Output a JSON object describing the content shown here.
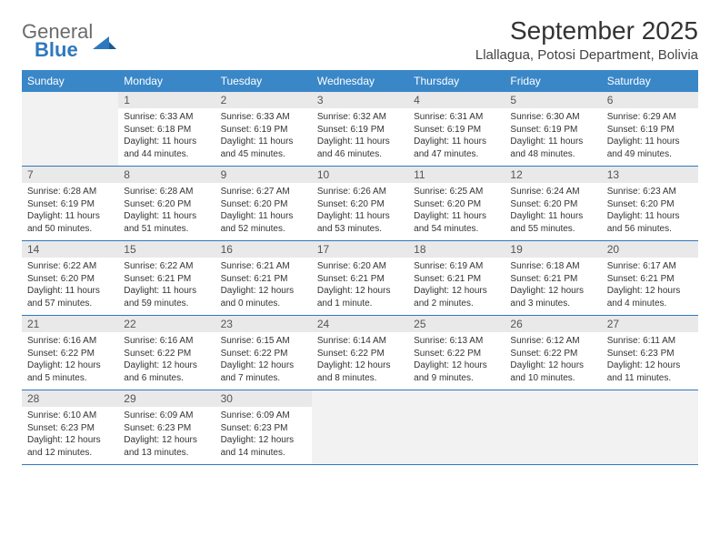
{
  "logo": {
    "word1": "General",
    "word2": "Blue",
    "word1_color": "#6b6b6b",
    "word2_color": "#2f78bf"
  },
  "title": "September 2025",
  "location": "Llallagua, Potosi Department, Bolivia",
  "header_bg": "#3a87c8",
  "header_fg": "#ffffff",
  "divider_color": "#2f78bf",
  "daynum_bg": "#e9e9e9",
  "empty_bg": "#f2f2f2",
  "day_names": [
    "Sunday",
    "Monday",
    "Tuesday",
    "Wednesday",
    "Thursday",
    "Friday",
    "Saturday"
  ],
  "weeks": [
    [
      null,
      {
        "n": "1",
        "sr": "Sunrise: 6:33 AM",
        "ss": "Sunset: 6:18 PM",
        "dl": "Daylight: 11 hours and 44 minutes."
      },
      {
        "n": "2",
        "sr": "Sunrise: 6:33 AM",
        "ss": "Sunset: 6:19 PM",
        "dl": "Daylight: 11 hours and 45 minutes."
      },
      {
        "n": "3",
        "sr": "Sunrise: 6:32 AM",
        "ss": "Sunset: 6:19 PM",
        "dl": "Daylight: 11 hours and 46 minutes."
      },
      {
        "n": "4",
        "sr": "Sunrise: 6:31 AM",
        "ss": "Sunset: 6:19 PM",
        "dl": "Daylight: 11 hours and 47 minutes."
      },
      {
        "n": "5",
        "sr": "Sunrise: 6:30 AM",
        "ss": "Sunset: 6:19 PM",
        "dl": "Daylight: 11 hours and 48 minutes."
      },
      {
        "n": "6",
        "sr": "Sunrise: 6:29 AM",
        "ss": "Sunset: 6:19 PM",
        "dl": "Daylight: 11 hours and 49 minutes."
      }
    ],
    [
      {
        "n": "7",
        "sr": "Sunrise: 6:28 AM",
        "ss": "Sunset: 6:19 PM",
        "dl": "Daylight: 11 hours and 50 minutes."
      },
      {
        "n": "8",
        "sr": "Sunrise: 6:28 AM",
        "ss": "Sunset: 6:20 PM",
        "dl": "Daylight: 11 hours and 51 minutes."
      },
      {
        "n": "9",
        "sr": "Sunrise: 6:27 AM",
        "ss": "Sunset: 6:20 PM",
        "dl": "Daylight: 11 hours and 52 minutes."
      },
      {
        "n": "10",
        "sr": "Sunrise: 6:26 AM",
        "ss": "Sunset: 6:20 PM",
        "dl": "Daylight: 11 hours and 53 minutes."
      },
      {
        "n": "11",
        "sr": "Sunrise: 6:25 AM",
        "ss": "Sunset: 6:20 PM",
        "dl": "Daylight: 11 hours and 54 minutes."
      },
      {
        "n": "12",
        "sr": "Sunrise: 6:24 AM",
        "ss": "Sunset: 6:20 PM",
        "dl": "Daylight: 11 hours and 55 minutes."
      },
      {
        "n": "13",
        "sr": "Sunrise: 6:23 AM",
        "ss": "Sunset: 6:20 PM",
        "dl": "Daylight: 11 hours and 56 minutes."
      }
    ],
    [
      {
        "n": "14",
        "sr": "Sunrise: 6:22 AM",
        "ss": "Sunset: 6:20 PM",
        "dl": "Daylight: 11 hours and 57 minutes."
      },
      {
        "n": "15",
        "sr": "Sunrise: 6:22 AM",
        "ss": "Sunset: 6:21 PM",
        "dl": "Daylight: 11 hours and 59 minutes."
      },
      {
        "n": "16",
        "sr": "Sunrise: 6:21 AM",
        "ss": "Sunset: 6:21 PM",
        "dl": "Daylight: 12 hours and 0 minutes."
      },
      {
        "n": "17",
        "sr": "Sunrise: 6:20 AM",
        "ss": "Sunset: 6:21 PM",
        "dl": "Daylight: 12 hours and 1 minute."
      },
      {
        "n": "18",
        "sr": "Sunrise: 6:19 AM",
        "ss": "Sunset: 6:21 PM",
        "dl": "Daylight: 12 hours and 2 minutes."
      },
      {
        "n": "19",
        "sr": "Sunrise: 6:18 AM",
        "ss": "Sunset: 6:21 PM",
        "dl": "Daylight: 12 hours and 3 minutes."
      },
      {
        "n": "20",
        "sr": "Sunrise: 6:17 AM",
        "ss": "Sunset: 6:21 PM",
        "dl": "Daylight: 12 hours and 4 minutes."
      }
    ],
    [
      {
        "n": "21",
        "sr": "Sunrise: 6:16 AM",
        "ss": "Sunset: 6:22 PM",
        "dl": "Daylight: 12 hours and 5 minutes."
      },
      {
        "n": "22",
        "sr": "Sunrise: 6:16 AM",
        "ss": "Sunset: 6:22 PM",
        "dl": "Daylight: 12 hours and 6 minutes."
      },
      {
        "n": "23",
        "sr": "Sunrise: 6:15 AM",
        "ss": "Sunset: 6:22 PM",
        "dl": "Daylight: 12 hours and 7 minutes."
      },
      {
        "n": "24",
        "sr": "Sunrise: 6:14 AM",
        "ss": "Sunset: 6:22 PM",
        "dl": "Daylight: 12 hours and 8 minutes."
      },
      {
        "n": "25",
        "sr": "Sunrise: 6:13 AM",
        "ss": "Sunset: 6:22 PM",
        "dl": "Daylight: 12 hours and 9 minutes."
      },
      {
        "n": "26",
        "sr": "Sunrise: 6:12 AM",
        "ss": "Sunset: 6:22 PM",
        "dl": "Daylight: 12 hours and 10 minutes."
      },
      {
        "n": "27",
        "sr": "Sunrise: 6:11 AM",
        "ss": "Sunset: 6:23 PM",
        "dl": "Daylight: 12 hours and 11 minutes."
      }
    ],
    [
      {
        "n": "28",
        "sr": "Sunrise: 6:10 AM",
        "ss": "Sunset: 6:23 PM",
        "dl": "Daylight: 12 hours and 12 minutes."
      },
      {
        "n": "29",
        "sr": "Sunrise: 6:09 AM",
        "ss": "Sunset: 6:23 PM",
        "dl": "Daylight: 12 hours and 13 minutes."
      },
      {
        "n": "30",
        "sr": "Sunrise: 6:09 AM",
        "ss": "Sunset: 6:23 PM",
        "dl": "Daylight: 12 hours and 14 minutes."
      },
      null,
      null,
      null,
      null
    ]
  ]
}
